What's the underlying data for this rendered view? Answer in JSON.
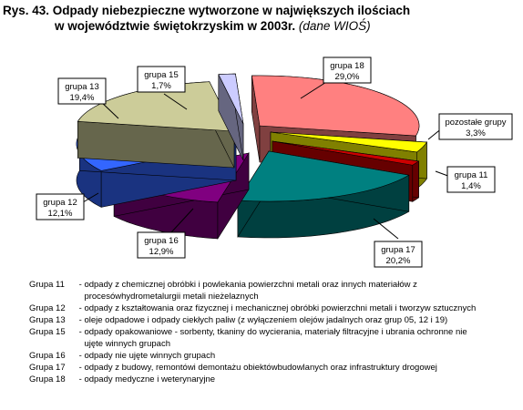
{
  "title": {
    "line1": "Rys. 43. Odpady niebezpieczne wytworzone w największych ilościach",
    "line2": "w województwie świętokrzyskim w 2003r.",
    "note": "(dane WIOŚ)"
  },
  "chart_data": {
    "type": "pie",
    "slices": [
      {
        "label": "grupa 18",
        "value_text": "29,0%",
        "value": 29.0,
        "top": "#ff8080",
        "side": "#804040"
      },
      {
        "label": "pozostałe grupy",
        "value_text": "3,3%",
        "value": 3.3,
        "top": "#ffff00",
        "side": "#808000"
      },
      {
        "label": "grupa 11",
        "value_text": "1,4%",
        "value": 1.4,
        "top": "#cc0000",
        "side": "#660000"
      },
      {
        "label": "grupa 17",
        "value_text": "20,2%",
        "value": 20.2,
        "top": "#008080",
        "side": "#004040"
      },
      {
        "label": "grupa 16",
        "value_text": "12,9%",
        "value": 12.9,
        "top": "#800080",
        "side": "#400040"
      },
      {
        "label": "grupa 12",
        "value_text": "12,1%",
        "value": 12.1,
        "top": "#3366ff",
        "side": "#1a3380"
      },
      {
        "label": "grupa 13",
        "value_text": "19,4%",
        "value": 19.4,
        "top": "#cccc99",
        "side": "#66664c"
      },
      {
        "label": "grupa 15",
        "value_text": "1,7%",
        "value": 1.7,
        "top": "#ccccff",
        "side": "#666680"
      }
    ]
  },
  "legend": [
    {
      "key": "Grupa 11",
      "text": "odpady z chemicznej obróbki i powlekania powierzchni metali oraz innych materiałów z procesówhydrometalurgii metali nieżelaznych"
    },
    {
      "key": "Grupa 12",
      "text": "odpady z kształtowania oraz fizycznej i mechanicznej obróbki powierzchni metali i tworzyw sztucznych"
    },
    {
      "key": "Grupa 13",
      "text": "oleje odpadowe i odpady ciekłych paliw (z wyłączeniem olejów jadalnych oraz grup 05, 12 i 19)"
    },
    {
      "key": "Grupa 15",
      "text": "odpady opakowaniowe - sorbenty, tkaniny do wycierania, materiały filtracyjne i ubrania ochronne nie ujęte winnych grupach"
    },
    {
      "key": "Grupa 16",
      "text": "odpady nie ujęte winnych grupach"
    },
    {
      "key": "Grupa 17",
      "text": "odpady z budowy, remontówi demontażu obiektówbudowlanych oraz infrastruktury drogowej"
    },
    {
      "key": "Grupa 18",
      "text": "odpady medyczne i weterynaryjne"
    }
  ]
}
